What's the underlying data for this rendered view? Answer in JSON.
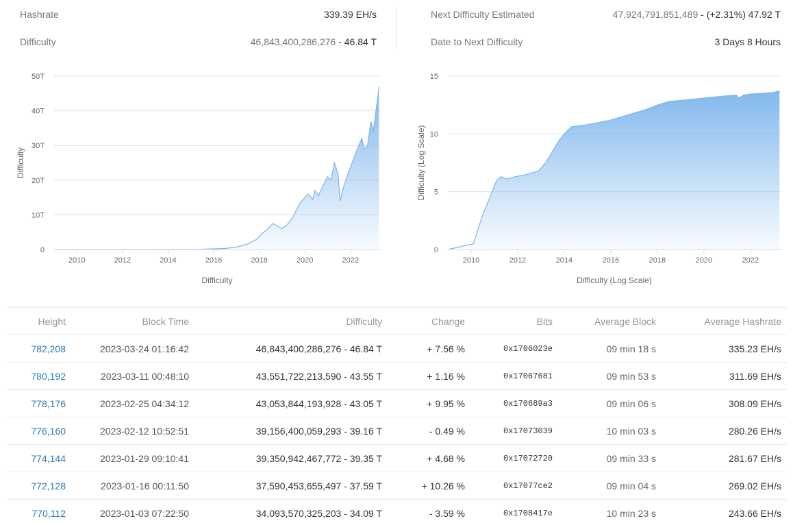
{
  "stats": {
    "hashrate_label": "Hashrate",
    "hashrate_value": "339.39 EH/s",
    "difficulty_label": "Difficulty",
    "difficulty_raw": "46,843,400,286,276",
    "difficulty_short": " - 46.84 T",
    "next_label": "Next Difficulty Estimated",
    "next_raw": "47,924,791,851,489",
    "next_change": " - (+2.31%) 47.92 T",
    "date_label": "Date to Next Difficulty",
    "date_value": "3 Days 8 Hours"
  },
  "chart_data": [
    {
      "type": "area",
      "title": "",
      "xlabel": "Difficulty",
      "ylabel": "Difficulty",
      "ylim": [
        0,
        50
      ],
      "y_unit": "T",
      "yticks": [
        0,
        10,
        20,
        30,
        40,
        50
      ],
      "ytick_labels": [
        "0",
        "10T",
        "20T",
        "30T",
        "40T",
        "50T"
      ],
      "xlim": [
        2009.0,
        2023.3
      ],
      "xticks": [
        2010,
        2012,
        2014,
        2016,
        2018,
        2020,
        2022
      ],
      "grid": true,
      "color": "#7cb5ec",
      "x": [
        2009.0,
        2012.0,
        2014.0,
        2015.5,
        2016.5,
        2017.0,
        2017.5,
        2017.9,
        2018.1,
        2018.3,
        2018.6,
        2018.8,
        2019.0,
        2019.2,
        2019.45,
        2019.6,
        2019.8,
        2020.0,
        2020.15,
        2020.35,
        2020.45,
        2020.6,
        2020.8,
        2021.0,
        2021.15,
        2021.3,
        2021.45,
        2021.55,
        2021.7,
        2021.9,
        2022.1,
        2022.3,
        2022.5,
        2022.6,
        2022.75,
        2022.9,
        2023.0,
        2023.1,
        2023.2,
        2023.25
      ],
      "y": [
        0,
        0,
        0.05,
        0.1,
        0.3,
        0.7,
        1.6,
        3.0,
        4.5,
        5.5,
        7.5,
        6.8,
        6.0,
        7.0,
        9.0,
        11.0,
        13.5,
        15.0,
        16.0,
        14.5,
        17.0,
        15.5,
        18.5,
        21.0,
        20.0,
        25.0,
        22.0,
        14.0,
        18.0,
        22.0,
        25.5,
        29.0,
        32.0,
        29.0,
        30.0,
        37.0,
        34.0,
        39.0,
        44.0,
        46.84
      ]
    },
    {
      "type": "area",
      "title": "",
      "xlabel": "Difficulty (Log Scale)",
      "ylabel": "Difficulty (Log Scale)",
      "ylim": [
        0,
        15
      ],
      "yticks": [
        0,
        5,
        10,
        15
      ],
      "ytick_labels": [
        "0",
        "5",
        "10",
        "15"
      ],
      "xlim": [
        2009.0,
        2023.3
      ],
      "xticks": [
        2010,
        2012,
        2014,
        2016,
        2018,
        2020,
        2022
      ],
      "grid": true,
      "color": "#7cb5ec",
      "x": [
        2009.0,
        2010.1,
        2010.3,
        2010.5,
        2010.7,
        2010.9,
        2011.1,
        2011.3,
        2011.5,
        2011.7,
        2011.9,
        2012.4,
        2012.9,
        2013.2,
        2013.5,
        2013.8,
        2014.0,
        2014.3,
        2014.6,
        2015.0,
        2015.5,
        2016.0,
        2016.5,
        2017.0,
        2017.5,
        2018.0,
        2018.5,
        2019.0,
        2019.5,
        2020.0,
        2020.5,
        2021.0,
        2021.4,
        2021.5,
        2021.7,
        2022.0,
        2022.5,
        2023.0,
        2023.25
      ],
      "y": [
        0,
        0.5,
        1.8,
        3.0,
        4.0,
        5.0,
        6.0,
        6.3,
        6.1,
        6.2,
        6.3,
        6.5,
        6.8,
        7.5,
        8.5,
        9.5,
        10.0,
        10.6,
        10.7,
        10.8,
        11.0,
        11.2,
        11.5,
        11.8,
        12.1,
        12.5,
        12.8,
        12.9,
        13.0,
        13.1,
        13.2,
        13.3,
        13.35,
        13.1,
        13.35,
        13.45,
        13.5,
        13.6,
        13.7
      ]
    }
  ],
  "table": {
    "headers": [
      "Height",
      "Block Time",
      "Difficulty",
      "Change",
      "Bits",
      "Average Block",
      "Average Hashrate"
    ],
    "rows": [
      {
        "height": "782,208",
        "time": "2023-03-24 01:16:42",
        "difficulty": "46,843,400,286,276 - 46.84 T",
        "change": "+ 7.56 %",
        "dir": "up",
        "bits": "0x1706023e",
        "avg_block": "09 min 18 s",
        "avg_hashrate": "335.23 EH/s"
      },
      {
        "height": "780,192",
        "time": "2023-03-11 00:48:10",
        "difficulty": "43,551,722,213,590 - 43.55 T",
        "change": "+ 1.16 %",
        "dir": "up",
        "bits": "0x17067681",
        "avg_block": "09 min 53 s",
        "avg_hashrate": "311.69 EH/s"
      },
      {
        "height": "778,176",
        "time": "2023-02-25 04:34:12",
        "difficulty": "43,053,844,193,928 - 43.05 T",
        "change": "+ 9.95 %",
        "dir": "up",
        "bits": "0x170689a3",
        "avg_block": "09 min 06 s",
        "avg_hashrate": "308.09 EH/s"
      },
      {
        "height": "776,160",
        "time": "2023-02-12 10:52:51",
        "difficulty": "39,156,400,059,293 - 39.16 T",
        "change": "- 0.49 %",
        "dir": "down",
        "bits": "0x17073039",
        "avg_block": "10 min 03 s",
        "avg_hashrate": "280.26 EH/s"
      },
      {
        "height": "774,144",
        "time": "2023-01-29 09:10:41",
        "difficulty": "39,350,942,467,772 - 39.35 T",
        "change": "+ 4.68 %",
        "dir": "up",
        "bits": "0x17072720",
        "avg_block": "09 min 33 s",
        "avg_hashrate": "281.67 EH/s"
      },
      {
        "height": "772,128",
        "time": "2023-01-16 00:11:50",
        "difficulty": "37,590,453,655,497 - 37.59 T",
        "change": "+ 10.26 %",
        "dir": "up",
        "bits": "0x17077ce2",
        "avg_block": "09 min 04 s",
        "avg_hashrate": "269.02 EH/s"
      },
      {
        "height": "770,112",
        "time": "2023-01-03 07:22:50",
        "difficulty": "34,093,570,325,203 - 34.09 T",
        "change": "- 3.59 %",
        "dir": "down",
        "bits": "0x1708417e",
        "avg_block": "10 min 23 s",
        "avg_hashrate": "243.66 EH/s"
      }
    ]
  }
}
